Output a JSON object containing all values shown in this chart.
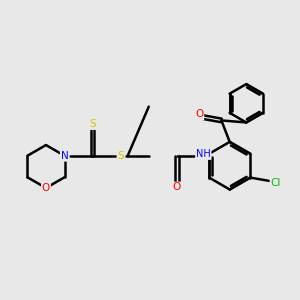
{
  "bg_color": "#e8e8e8",
  "atom_colors": {
    "C": "#000000",
    "N": "#0000ff",
    "O": "#ff0000",
    "S": "#cccc00",
    "Cl": "#00bb00",
    "H": "#7090b0"
  },
  "bond_color": "#000000",
  "bond_width": 1.8,
  "dbo": 0.055,
  "dbi": 0.055
}
